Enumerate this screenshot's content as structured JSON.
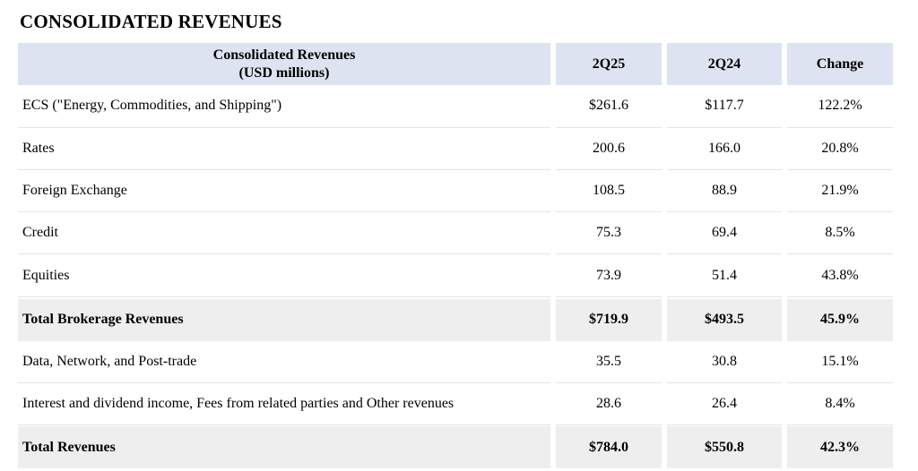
{
  "title": "CONSOLIDATED REVENUES",
  "table": {
    "header": {
      "label_line1": "Consolidated Revenues",
      "label_line2": "(USD millions)",
      "col1": "2Q25",
      "col2": "2Q24",
      "col3": "Change"
    },
    "rows": [
      {
        "label": "ECS (\"Energy, Commodities, and Shipping\")",
        "v1": "$261.6",
        "v2": "$117.7",
        "v3": "122.2%"
      },
      {
        "label": "Rates",
        "v1": "200.6",
        "v2": "166.0",
        "v3": "20.8%"
      },
      {
        "label": "Foreign Exchange",
        "v1": "108.5",
        "v2": "88.9",
        "v3": "21.9%"
      },
      {
        "label": "Credit",
        "v1": "75.3",
        "v2": "69.4",
        "v3": "8.5%"
      },
      {
        "label": "Equities",
        "v1": "73.9",
        "v2": "51.4",
        "v3": "43.8%"
      },
      {
        "label": "Total Brokerage Revenues",
        "v1": "$719.9",
        "v2": "$493.5",
        "v3": "45.9%"
      },
      {
        "label": "Data, Network, and Post-trade",
        "v1": "35.5",
        "v2": "30.8",
        "v3": "15.1%"
      },
      {
        "label": "Interest and dividend income, Fees from related parties and Other revenues",
        "v1": "28.6",
        "v2": "26.4",
        "v3": "8.4%"
      },
      {
        "label": "Total Revenues",
        "v1": "$784.0",
        "v2": "$550.8",
        "v3": "42.3%"
      }
    ]
  }
}
